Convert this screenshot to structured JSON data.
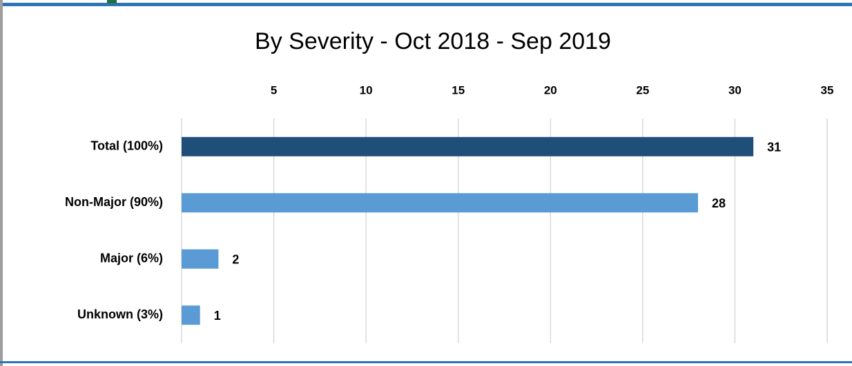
{
  "chart_data": {
    "type": "barh",
    "title": "By Severity - Oct 2018 - Sep 2019",
    "categories": [
      "Total (100%)",
      "Non-Major (90%)",
      "Major (6%)",
      "Unknown (3%)"
    ],
    "values": [
      31,
      28,
      2,
      1
    ],
    "colors": [
      "#1f4e79",
      "#5b9bd5",
      "#5b9bd5",
      "#5b9bd5"
    ],
    "xlim": [
      0,
      35
    ],
    "xticks": [
      5,
      10,
      15,
      20,
      25,
      30,
      35
    ],
    "grid": true
  }
}
